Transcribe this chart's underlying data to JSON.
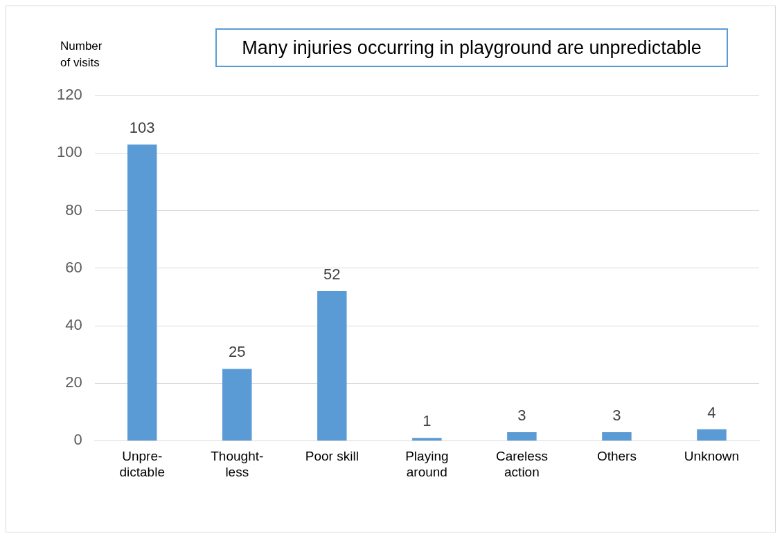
{
  "chart_data": {
    "type": "bar",
    "ylabel": "Number\nof visits",
    "annotations": [
      "Many injuries occurring in playground are unpredictable"
    ],
    "categories": [
      "Unpre-\ndictable",
      "Thought-\nless",
      "Poor skill",
      "Playing\naround",
      "Careless\naction",
      "Others",
      "Unknown"
    ],
    "values": [
      103,
      25,
      52,
      1,
      3,
      3,
      4
    ],
    "color": "#5b9bd5",
    "ylim": [
      0,
      120
    ],
    "yticks": [
      0,
      20,
      40,
      60,
      80,
      100,
      120
    ],
    "grid": "y",
    "data_labels": true,
    "legend": false
  }
}
